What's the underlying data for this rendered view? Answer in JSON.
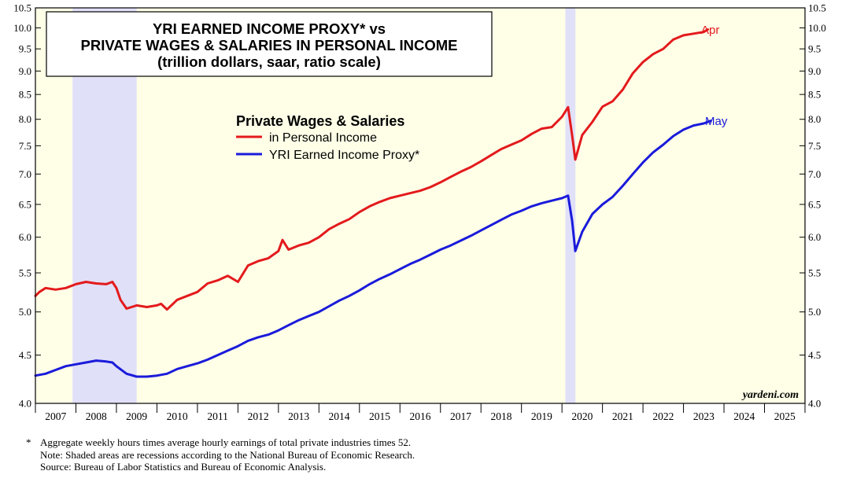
{
  "chart_data": {
    "type": "line",
    "title": [
      "YRI EARNED INCOME PROXY* vs",
      "PRIVATE WAGES & SALARIES IN PERSONAL INCOME",
      "(trillion dollars, saar, ratio scale)"
    ],
    "legend_title": "Private Wages & Salaries",
    "legend_placement": "top-center",
    "y_scale": "log",
    "ylim": [
      4.0,
      10.5
    ],
    "y_ticks": [
      "4.0",
      "4.5",
      "5.0",
      "5.5",
      "6.0",
      "6.5",
      "7.0",
      "7.5",
      "8.0",
      "8.5",
      "9.0",
      "9.5",
      "10.0",
      "10.5"
    ],
    "xlim": [
      2007.0,
      2026.0
    ],
    "x_ticks": [
      "2007",
      "2008",
      "2009",
      "2010",
      "2011",
      "2012",
      "2013",
      "2014",
      "2015",
      "2016",
      "2017",
      "2018",
      "2019",
      "2020",
      "2021",
      "2022",
      "2023",
      "2024",
      "2025"
    ],
    "recessions": [
      [
        2007.917,
        2009.5
      ],
      [
        2020.083,
        2020.333
      ]
    ],
    "series": [
      {
        "name": "in Personal Income",
        "color": "#e31a1c",
        "end_label": "Apr",
        "points": [
          [
            2007.0,
            5.2
          ],
          [
            2007.1,
            5.25
          ],
          [
            2007.25,
            5.3
          ],
          [
            2007.5,
            5.28
          ],
          [
            2007.75,
            5.3
          ],
          [
            2008.0,
            5.35
          ],
          [
            2008.25,
            5.38
          ],
          [
            2008.5,
            5.36
          ],
          [
            2008.75,
            5.35
          ],
          [
            2008.9,
            5.38
          ],
          [
            2009.0,
            5.3
          ],
          [
            2009.1,
            5.15
          ],
          [
            2009.25,
            5.04
          ],
          [
            2009.5,
            5.08
          ],
          [
            2009.75,
            5.06
          ],
          [
            2010.0,
            5.08
          ],
          [
            2010.1,
            5.1
          ],
          [
            2010.25,
            5.03
          ],
          [
            2010.5,
            5.15
          ],
          [
            2010.75,
            5.2
          ],
          [
            2011.0,
            5.25
          ],
          [
            2011.25,
            5.36
          ],
          [
            2011.5,
            5.4
          ],
          [
            2011.75,
            5.46
          ],
          [
            2012.0,
            5.38
          ],
          [
            2012.25,
            5.6
          ],
          [
            2012.5,
            5.66
          ],
          [
            2012.75,
            5.7
          ],
          [
            2013.0,
            5.8
          ],
          [
            2013.1,
            5.96
          ],
          [
            2013.25,
            5.82
          ],
          [
            2013.5,
            5.88
          ],
          [
            2013.75,
            5.92
          ],
          [
            2014.0,
            6.0
          ],
          [
            2014.25,
            6.12
          ],
          [
            2014.5,
            6.2
          ],
          [
            2014.75,
            6.27
          ],
          [
            2015.0,
            6.38
          ],
          [
            2015.25,
            6.47
          ],
          [
            2015.5,
            6.54
          ],
          [
            2015.75,
            6.6
          ],
          [
            2016.0,
            6.64
          ],
          [
            2016.25,
            6.68
          ],
          [
            2016.5,
            6.72
          ],
          [
            2016.75,
            6.78
          ],
          [
            2017.0,
            6.86
          ],
          [
            2017.25,
            6.95
          ],
          [
            2017.5,
            7.04
          ],
          [
            2017.75,
            7.12
          ],
          [
            2018.0,
            7.22
          ],
          [
            2018.25,
            7.33
          ],
          [
            2018.5,
            7.44
          ],
          [
            2018.75,
            7.52
          ],
          [
            2019.0,
            7.6
          ],
          [
            2019.25,
            7.72
          ],
          [
            2019.5,
            7.82
          ],
          [
            2019.75,
            7.85
          ],
          [
            2020.0,
            8.05
          ],
          [
            2020.15,
            8.24
          ],
          [
            2020.25,
            7.7
          ],
          [
            2020.33,
            7.25
          ],
          [
            2020.5,
            7.7
          ],
          [
            2020.75,
            7.95
          ],
          [
            2021.0,
            8.25
          ],
          [
            2021.25,
            8.36
          ],
          [
            2021.5,
            8.6
          ],
          [
            2021.75,
            8.95
          ],
          [
            2022.0,
            9.2
          ],
          [
            2022.25,
            9.38
          ],
          [
            2022.5,
            9.5
          ],
          [
            2022.75,
            9.72
          ],
          [
            2023.0,
            9.82
          ],
          [
            2023.25,
            9.86
          ],
          [
            2023.5,
            9.9
          ],
          [
            2023.6,
            9.96
          ]
        ]
      },
      {
        "name": "YRI Earned Income Proxy*",
        "color": "#1a1adb",
        "end_label": "May",
        "points": [
          [
            2007.0,
            4.28
          ],
          [
            2007.25,
            4.3
          ],
          [
            2007.5,
            4.34
          ],
          [
            2007.75,
            4.38
          ],
          [
            2008.0,
            4.4
          ],
          [
            2008.25,
            4.42
          ],
          [
            2008.5,
            4.44
          ],
          [
            2008.75,
            4.43
          ],
          [
            2008.9,
            4.42
          ],
          [
            2009.0,
            4.38
          ],
          [
            2009.25,
            4.3
          ],
          [
            2009.5,
            4.27
          ],
          [
            2009.75,
            4.27
          ],
          [
            2010.0,
            4.28
          ],
          [
            2010.25,
            4.3
          ],
          [
            2010.5,
            4.35
          ],
          [
            2010.75,
            4.38
          ],
          [
            2011.0,
            4.41
          ],
          [
            2011.25,
            4.45
          ],
          [
            2011.5,
            4.5
          ],
          [
            2011.75,
            4.55
          ],
          [
            2012.0,
            4.6
          ],
          [
            2012.25,
            4.66
          ],
          [
            2012.5,
            4.7
          ],
          [
            2012.75,
            4.73
          ],
          [
            2013.0,
            4.78
          ],
          [
            2013.25,
            4.84
          ],
          [
            2013.5,
            4.9
          ],
          [
            2013.75,
            4.95
          ],
          [
            2014.0,
            5.0
          ],
          [
            2014.25,
            5.07
          ],
          [
            2014.5,
            5.14
          ],
          [
            2014.75,
            5.2
          ],
          [
            2015.0,
            5.27
          ],
          [
            2015.25,
            5.35
          ],
          [
            2015.5,
            5.42
          ],
          [
            2015.75,
            5.48
          ],
          [
            2016.0,
            5.55
          ],
          [
            2016.25,
            5.62
          ],
          [
            2016.5,
            5.68
          ],
          [
            2016.75,
            5.75
          ],
          [
            2017.0,
            5.82
          ],
          [
            2017.25,
            5.88
          ],
          [
            2017.5,
            5.95
          ],
          [
            2017.75,
            6.02
          ],
          [
            2018.0,
            6.1
          ],
          [
            2018.25,
            6.18
          ],
          [
            2018.5,
            6.26
          ],
          [
            2018.75,
            6.34
          ],
          [
            2019.0,
            6.4
          ],
          [
            2019.25,
            6.47
          ],
          [
            2019.5,
            6.52
          ],
          [
            2019.75,
            6.56
          ],
          [
            2020.0,
            6.6
          ],
          [
            2020.15,
            6.64
          ],
          [
            2020.25,
            6.25
          ],
          [
            2020.33,
            5.8
          ],
          [
            2020.5,
            6.08
          ],
          [
            2020.75,
            6.35
          ],
          [
            2021.0,
            6.5
          ],
          [
            2021.25,
            6.62
          ],
          [
            2021.5,
            6.8
          ],
          [
            2021.75,
            7.0
          ],
          [
            2022.0,
            7.2
          ],
          [
            2022.25,
            7.38
          ],
          [
            2022.5,
            7.52
          ],
          [
            2022.75,
            7.68
          ],
          [
            2023.0,
            7.8
          ],
          [
            2023.25,
            7.88
          ],
          [
            2023.5,
            7.92
          ],
          [
            2023.67,
            7.97
          ]
        ]
      }
    ],
    "source_label": "yardeni.com"
  },
  "footnotes": {
    "star": "*",
    "lines": [
      "Aggregate weekly hours times average hourly earnings of total private industries times 52.",
      "Note: Shaded areas are recessions according to the National Bureau of Economic Research.",
      "Source: Bureau of Labor Statistics and Bureau of Economic Analysis."
    ]
  },
  "colors": {
    "plot_background": "#ffffe8",
    "recession_shade": "#e0e0f8",
    "red": "#e31a1c",
    "blue": "#1a1adb"
  }
}
